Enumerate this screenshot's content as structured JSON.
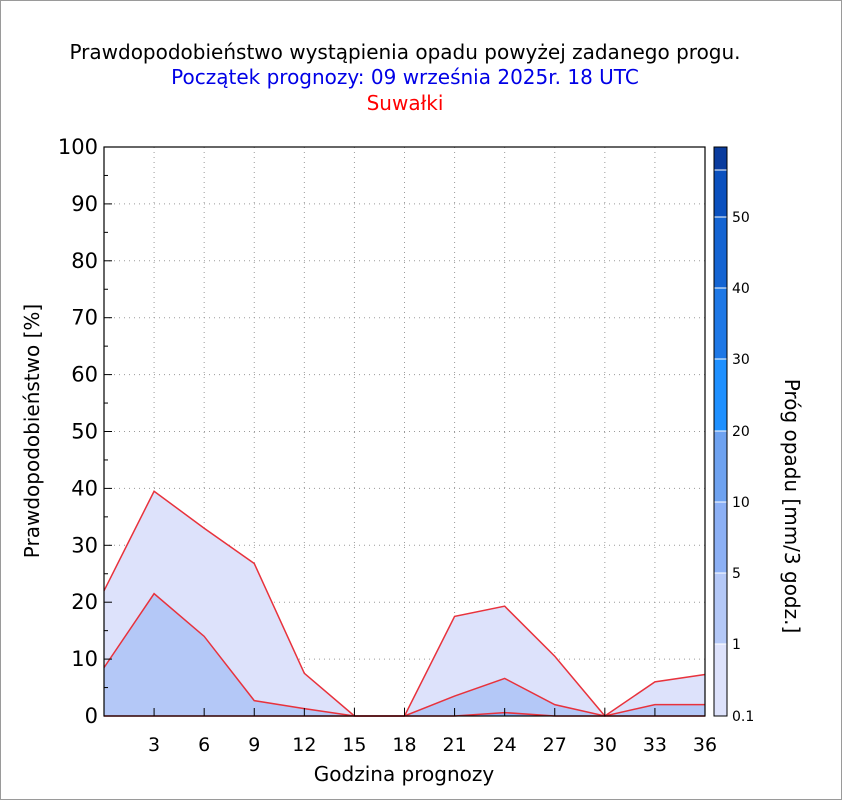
{
  "titles": {
    "main": "Prawdopodobieństwo wystąpienia opadu powyżej zadanego progu.",
    "forecast_start": "Początek prognozy: 09 września 2025r. 18 UTC",
    "location": "Suwałki"
  },
  "colors": {
    "title_main": "#000000",
    "title_start": "#0000e6",
    "title_location": "#ff0000",
    "series_line": "#e8323c",
    "fill_0_1": "#dde2fb",
    "fill_1": "#b4c8f7"
  },
  "chart_data": {
    "type": "area",
    "xlabel": "Godzina prognozy",
    "ylabel": "Prawdopodobieństwo [%]",
    "xlim": [
      0,
      36
    ],
    "ylim": [
      0,
      100
    ],
    "x_ticks": [
      3,
      6,
      9,
      12,
      15,
      18,
      21,
      24,
      27,
      30,
      33,
      36
    ],
    "y_ticks": [
      0,
      10,
      20,
      30,
      40,
      50,
      60,
      70,
      80,
      90,
      100
    ],
    "grid": true,
    "x": [
      0,
      3,
      6,
      9,
      12,
      15,
      18,
      21,
      24,
      27,
      30,
      33,
      36
    ],
    "series": [
      {
        "threshold": "0.1",
        "values": [
          22,
          39.5,
          33,
          26.8,
          7.5,
          0,
          0,
          17.5,
          19.3,
          10.5,
          0,
          6,
          7.3
        ]
      },
      {
        "threshold": "1",
        "values": [
          8.5,
          21.5,
          14,
          2.7,
          1.3,
          0,
          0,
          3.5,
          6.6,
          2,
          0,
          2,
          2
        ]
      },
      {
        "threshold": "5",
        "values": [
          0,
          0,
          0,
          0,
          0,
          0,
          0,
          0,
          0.6,
          0,
          0,
          0,
          0
        ]
      }
    ],
    "colorbar": {
      "label": "Próg opadu [mm/3 godz.]",
      "tick_labels": [
        "0.1",
        "1",
        "5",
        "10",
        "20",
        "30",
        "40",
        "50"
      ],
      "colors": [
        "#dde2fb",
        "#b4c8f7",
        "#8cb0f5",
        "#6ea2f0",
        "#1e90ff",
        "#1e78e6",
        "#1464d2",
        "#0a50be",
        "#0a3c9e"
      ]
    }
  }
}
